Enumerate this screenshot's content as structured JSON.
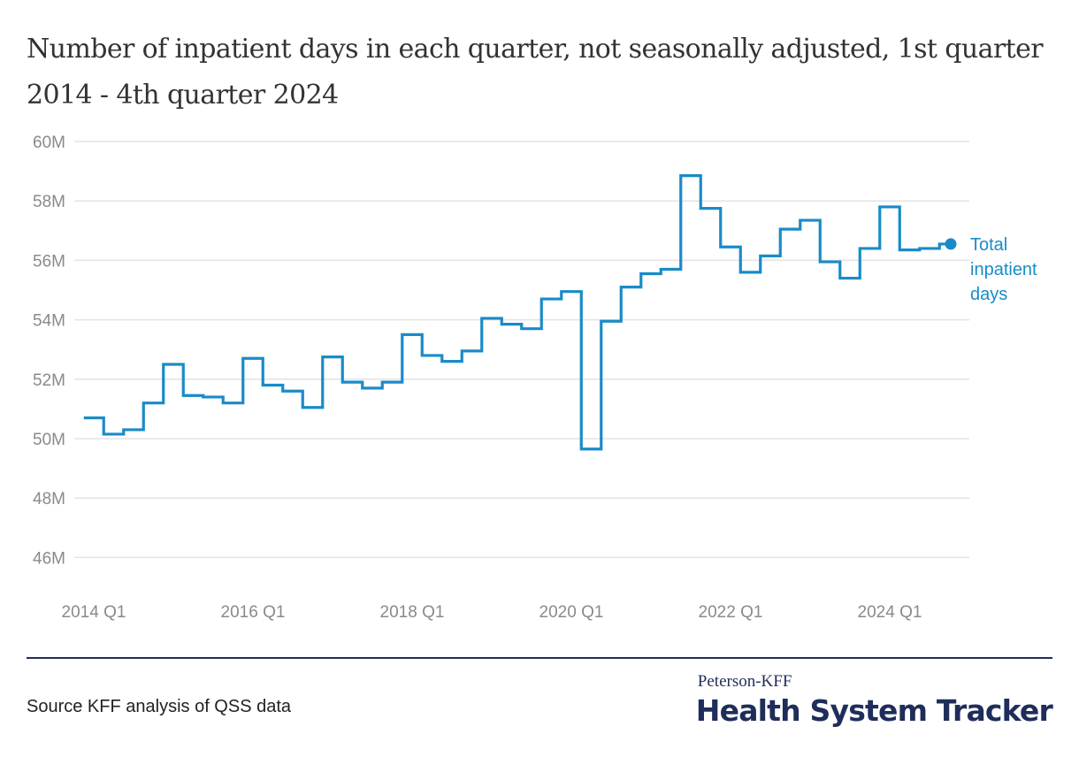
{
  "header": {
    "title": "Number of inpatient days in each quarter, not seasonally adjusted, 1st quarter 2014 - 4th quarter 2024"
  },
  "footer": {
    "source": "Source KFF analysis of QSS data",
    "brand_top": "Peterson-KFF",
    "brand_main": "Health System Tracker"
  },
  "colors": {
    "series": "#1a8bc8",
    "grid": "#e3e3e3",
    "divider": "#1f2d5a"
  },
  "chart_data": {
    "type": "line",
    "step": true,
    "title": "Number of inpatient days in each quarter, not seasonally adjusted, 1st quarter 2014 - 4th quarter 2024",
    "xlabel": "",
    "ylabel": "",
    "ylim": [
      45,
      60
    ],
    "yticks": [
      46,
      48,
      50,
      52,
      54,
      56,
      58,
      60
    ],
    "ytick_labels": [
      "46M",
      "48M",
      "50M",
      "52M",
      "54M",
      "56M",
      "58M",
      "60M"
    ],
    "xtick_labels": [
      "2014 Q1",
      "2016 Q1",
      "2018 Q1",
      "2020 Q1",
      "2022 Q1",
      "2024 Q1"
    ],
    "xtick_indices": [
      0,
      8,
      16,
      24,
      32,
      40
    ],
    "grid": true,
    "legend_placement": "right end label",
    "x": [
      "2014 Q1",
      "2014 Q2",
      "2014 Q3",
      "2014 Q4",
      "2015 Q1",
      "2015 Q2",
      "2015 Q3",
      "2015 Q4",
      "2016 Q1",
      "2016 Q2",
      "2016 Q3",
      "2016 Q4",
      "2017 Q1",
      "2017 Q2",
      "2017 Q3",
      "2017 Q4",
      "2018 Q1",
      "2018 Q2",
      "2018 Q3",
      "2018 Q4",
      "2019 Q1",
      "2019 Q2",
      "2019 Q3",
      "2019 Q4",
      "2020 Q1",
      "2020 Q2",
      "2020 Q3",
      "2020 Q4",
      "2021 Q1",
      "2021 Q2",
      "2021 Q3",
      "2021 Q4",
      "2022 Q1",
      "2022 Q2",
      "2022 Q3",
      "2022 Q4",
      "2023 Q1",
      "2023 Q2",
      "2023 Q3",
      "2023 Q4",
      "2024 Q1",
      "2024 Q2",
      "2024 Q3",
      "2024 Q4"
    ],
    "series": [
      {
        "name": "Total inpatient days",
        "values": [
          50.7,
          50.15,
          50.3,
          51.2,
          52.5,
          51.45,
          51.4,
          51.2,
          52.7,
          51.8,
          51.6,
          51.05,
          52.75,
          51.9,
          51.7,
          51.9,
          53.5,
          52.8,
          52.6,
          52.95,
          54.05,
          53.85,
          53.7,
          54.7,
          54.95,
          49.65,
          53.95,
          55.1,
          55.55,
          55.7,
          58.85,
          57.75,
          56.45,
          55.6,
          56.15,
          57.05,
          57.35,
          55.95,
          55.4,
          56.4,
          57.8,
          56.35,
          56.4,
          56.55
        ]
      }
    ]
  }
}
